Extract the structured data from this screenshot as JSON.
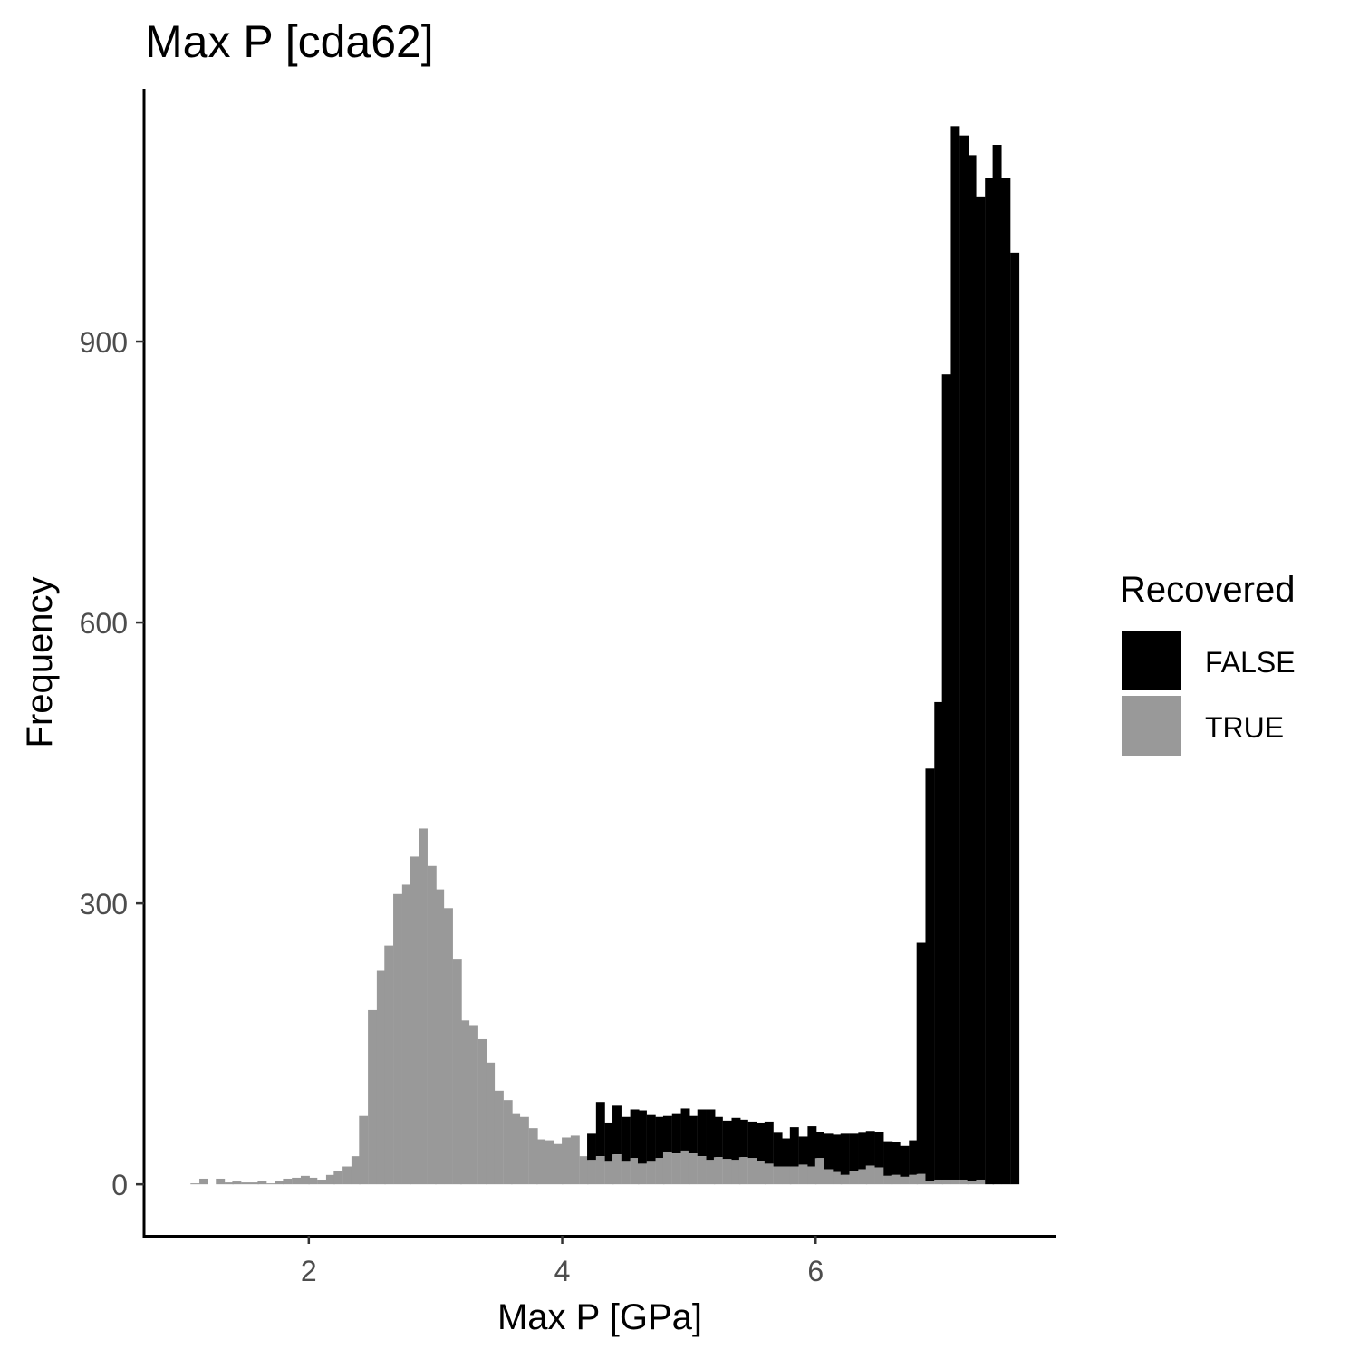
{
  "chart_data": {
    "type": "bar",
    "subtype": "stacked-histogram",
    "title": "Max P [cda62]",
    "xlabel": "Max P [GPa]",
    "ylabel": "Frequency",
    "xlim": [
      0.7,
      7.9
    ],
    "ylim": [
      -55,
      1170
    ],
    "xticks": [
      2,
      4,
      6
    ],
    "yticks": [
      0,
      300,
      600,
      900
    ],
    "grid": false,
    "bin_width": 0.0667,
    "x": [
      1.1,
      1.17,
      1.23,
      1.3,
      1.37,
      1.43,
      1.5,
      1.57,
      1.63,
      1.7,
      1.77,
      1.83,
      1.9,
      1.97,
      2.03,
      2.1,
      2.17,
      2.23,
      2.3,
      2.37,
      2.43,
      2.5,
      2.57,
      2.63,
      2.7,
      2.77,
      2.83,
      2.9,
      2.97,
      3.03,
      3.1,
      3.17,
      3.23,
      3.3,
      3.37,
      3.43,
      3.5,
      3.57,
      3.63,
      3.7,
      3.77,
      3.83,
      3.9,
      3.97,
      4.03,
      4.1,
      4.17,
      4.23,
      4.3,
      4.37,
      4.43,
      4.5,
      4.57,
      4.63,
      4.7,
      4.77,
      4.83,
      4.9,
      4.97,
      5.03,
      5.1,
      5.17,
      5.23,
      5.3,
      5.37,
      5.43,
      5.5,
      5.57,
      5.63,
      5.7,
      5.77,
      5.83,
      5.9,
      5.97,
      6.03,
      6.1,
      6.17,
      6.23,
      6.3,
      6.37,
      6.43,
      6.5,
      6.57,
      6.63,
      6.7,
      6.77,
      6.83,
      6.9,
      6.97,
      7.03,
      7.1,
      7.17,
      7.23,
      7.3,
      7.37,
      7.43,
      7.5,
      7.57
    ],
    "series": [
      {
        "name": "TRUE",
        "color": "#999999",
        "values": [
          1,
          6,
          0,
          6,
          2,
          3,
          2,
          2,
          4,
          1,
          4,
          6,
          7,
          9,
          7,
          5,
          10,
          14,
          19,
          30,
          73,
          186,
          228,
          255,
          310,
          320,
          350,
          380,
          340,
          315,
          295,
          240,
          175,
          170,
          155,
          130,
          100,
          90,
          75,
          72,
          60,
          48,
          47,
          43,
          50,
          52,
          30,
          26,
          30,
          24,
          32,
          24,
          28,
          22,
          24,
          28,
          35,
          33,
          36,
          33,
          30,
          26,
          29,
          27,
          26,
          29,
          28,
          25,
          22,
          19,
          19,
          19,
          21,
          19,
          28,
          16,
          13,
          10,
          14,
          16,
          20,
          18,
          9,
          10,
          8,
          10,
          11,
          4,
          5,
          5,
          5,
          5,
          4,
          5,
          0,
          0,
          0,
          0
        ]
      },
      {
        "name": "FALSE",
        "color": "#000000",
        "values": [
          0,
          0,
          0,
          0,
          0,
          0,
          0,
          0,
          0,
          0,
          0,
          0,
          0,
          0,
          0,
          0,
          0,
          0,
          0,
          0,
          0,
          0,
          0,
          0,
          0,
          0,
          0,
          0,
          0,
          0,
          0,
          0,
          0,
          0,
          0,
          0,
          0,
          0,
          0,
          0,
          0,
          0,
          0,
          0,
          0,
          0,
          0,
          28,
          58,
          42,
          52,
          48,
          52,
          57,
          50,
          44,
          38,
          42,
          45,
          40,
          50,
          54,
          43,
          41,
          45,
          40,
          39,
          41,
          45,
          36,
          30,
          42,
          30,
          43,
          28,
          38,
          40,
          44,
          40,
          39,
          37,
          38,
          37,
          35,
          33,
          37,
          247,
          440,
          510,
          860,
          1125,
          1115,
          1095,
          1050,
          1075,
          1110,
          1075,
          995
        ]
      }
    ],
    "legend": {
      "title": "Recovered",
      "position": "right",
      "entries": [
        {
          "label": "FALSE",
          "color": "#000000"
        },
        {
          "label": "TRUE",
          "color": "#999999"
        }
      ]
    }
  }
}
